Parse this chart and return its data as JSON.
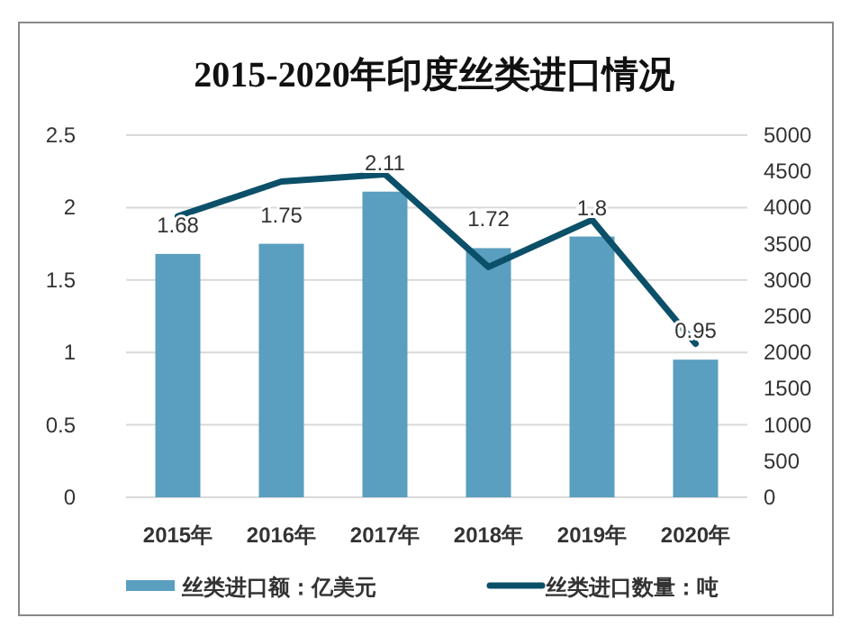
{
  "chart_data": {
    "type": "bar",
    "title": "2015-2020年印度丝类进口情况",
    "categories": [
      "2015年",
      "2016年",
      "2017年",
      "2018年",
      "2019年",
      "2020年"
    ],
    "series": [
      {
        "name": "丝类进口额：亿美元",
        "color": "#5a9ec0",
        "values": [
          1.68,
          1.75,
          2.11,
          1.72,
          1.8,
          0.95
        ],
        "value_labels": [
          "1.68",
          "1.75",
          "2.11",
          "1.72",
          "1.8",
          "0.95"
        ]
      },
      {
        "name": "丝类进口数量：吨",
        "type": "line",
        "axis": "y2",
        "color": "#0b5068",
        "values": [
          3880,
          4360,
          4460,
          3180,
          3830,
          2120
        ]
      }
    ],
    "ylim": [
      0,
      2.5
    ],
    "yticks": [
      0,
      0.5,
      1,
      1.5,
      2,
      2.5
    ],
    "y2lim": [
      0,
      5000
    ],
    "y2ticks": [
      0,
      500,
      1000,
      1500,
      2000,
      2500,
      3000,
      3500,
      4000,
      4500,
      5000
    ],
    "grid": "y",
    "legend": "bottom"
  }
}
